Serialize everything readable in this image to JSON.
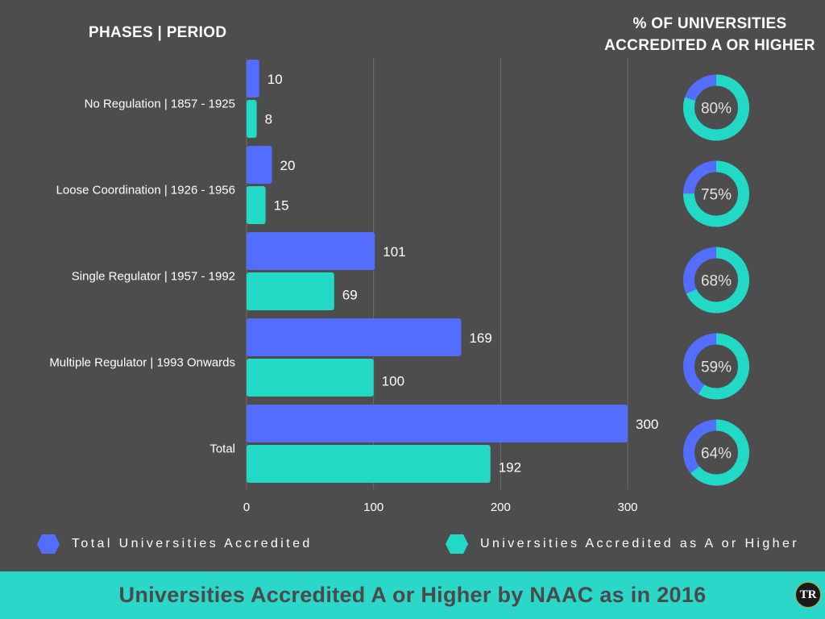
{
  "headers": {
    "left": "PHASES | PERIOD",
    "right_line1": "% OF UNIVERSITIES",
    "right_line2": "ACCREDITED A OR HIGHER"
  },
  "colors": {
    "background": "#4d4d4d",
    "total": "#536dfe",
    "a_or_higher": "#22d9c6",
    "gridline": "#6f6f6f",
    "footer": "#2ad7c9"
  },
  "chart_data": {
    "type": "bar",
    "orientation": "horizontal",
    "categories": [
      "No Regulation | 1857 - 1925",
      "Loose Coordination | 1926 - 1956",
      "Single Regulator | 1957 - 1992",
      "Multiple Regulator | 1993 Onwards",
      "Total"
    ],
    "series": [
      {
        "name": "Total Universities Accredited",
        "values": [
          10,
          20,
          101,
          169,
          300
        ]
      },
      {
        "name": "Universities Accredited as A or Higher",
        "values": [
          8,
          15,
          69,
          100,
          192
        ]
      }
    ],
    "percent_a_or_higher": [
      80,
      75,
      68,
      59,
      64
    ],
    "percent_labels": [
      "80%",
      "75%",
      "68%",
      "59%",
      "64%"
    ],
    "xlim": [
      0,
      300
    ],
    "xticks": [
      0,
      100,
      200,
      300
    ],
    "grid": true,
    "legend_position": "bottom",
    "title": "Universities Accredited A or Higher by NAAC as in 2016"
  },
  "legend": {
    "total_label": "Total Universities Accredited",
    "a_label": "Universities Accredited as A or Higher"
  },
  "footer": {
    "title": "Universities Accredited A or Higher by NAAC as in 2016",
    "logo_text": "TR"
  }
}
